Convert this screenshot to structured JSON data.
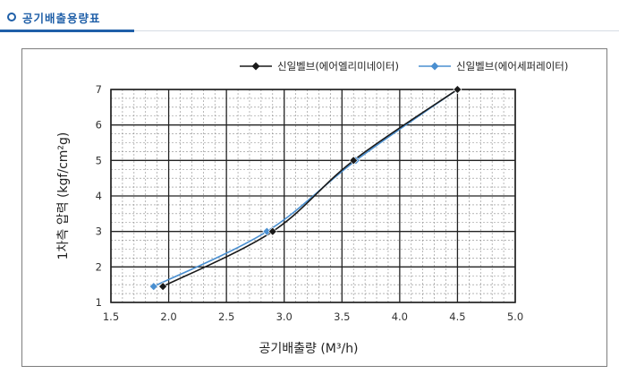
{
  "section": {
    "title": "공기배출용량표"
  },
  "colors": {
    "accent": "#1f5fa8",
    "series1": "#1a1a1a",
    "series2": "#4a8fd0"
  },
  "chart_data": {
    "type": "line",
    "xlabel": "공기배출량 (M³/h)",
    "ylabel": "1차측 압력 (kgf/cm²g)",
    "xlim": [
      1.5,
      5.0
    ],
    "ylim": [
      1,
      7
    ],
    "xticks": [
      "1.5",
      "2.0",
      "2.5",
      "3.0",
      "3.5",
      "4.0",
      "4.5",
      "5.0"
    ],
    "yticks": [
      "1",
      "2",
      "3",
      "4",
      "5",
      "6",
      "7"
    ],
    "grid": true,
    "legend_position": "top-right",
    "series": [
      {
        "name": "신일벨브(에어엘리미네이터)",
        "x": [
          1.95,
          2.9,
          3.6,
          4.5
        ],
        "y": [
          1.45,
          3.0,
          5.0,
          7.0
        ]
      },
      {
        "name": "신일벨브(에어세퍼레이터)",
        "x": [
          1.87,
          2.85,
          3.62,
          4.5
        ],
        "y": [
          1.45,
          3.0,
          5.0,
          7.0
        ]
      }
    ]
  }
}
